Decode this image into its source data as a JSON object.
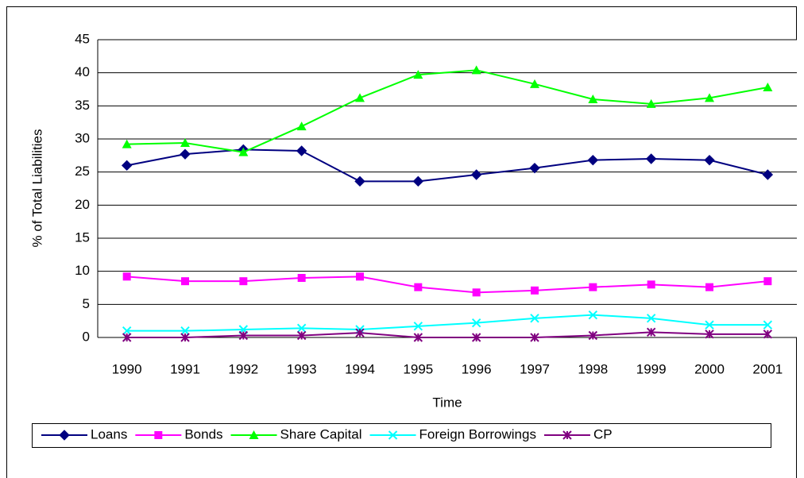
{
  "chart_data": {
    "type": "line",
    "x_label": "Time",
    "y_label": "% of Total Liabilities",
    "categories": [
      "1990",
      "1991",
      "1992",
      "1993",
      "1994",
      "1995",
      "1996",
      "1997",
      "1998",
      "1999",
      "2000",
      "2001"
    ],
    "ylim": [
      0,
      45
    ],
    "yticks": [
      0,
      5,
      10,
      15,
      20,
      25,
      30,
      35,
      40,
      45
    ],
    "grid": true,
    "legend": "bottom",
    "series": [
      {
        "name": "Loans",
        "color": "#000080",
        "marker": "diamond",
        "values": [
          26.0,
          27.7,
          28.4,
          28.2,
          23.6,
          23.6,
          24.6,
          25.6,
          26.8,
          27.0,
          26.8,
          24.6
        ]
      },
      {
        "name": "Bonds",
        "color": "#ff00ff",
        "marker": "square",
        "values": [
          9.2,
          8.5,
          8.5,
          9.0,
          9.2,
          7.6,
          6.8,
          7.1,
          7.6,
          8.0,
          7.6,
          8.5
        ]
      },
      {
        "name": "Share Capital",
        "color": "#00ff00",
        "marker": "triangle",
        "values": [
          29.2,
          29.4,
          28.0,
          31.9,
          36.2,
          39.7,
          40.4,
          38.3,
          36.0,
          35.3,
          36.2,
          37.8
        ]
      },
      {
        "name": "Foreign Borrowings",
        "color": "#00ffff",
        "marker": "x",
        "values": [
          1.0,
          1.0,
          1.2,
          1.4,
          1.2,
          1.7,
          2.2,
          2.9,
          3.4,
          2.9,
          1.9,
          1.9
        ]
      },
      {
        "name": "CP",
        "color": "#800080",
        "marker": "star",
        "values": [
          0,
          0,
          0.3,
          0.3,
          0.7,
          0,
          0,
          0,
          0.3,
          0.8,
          0.5,
          0.5
        ]
      }
    ]
  }
}
